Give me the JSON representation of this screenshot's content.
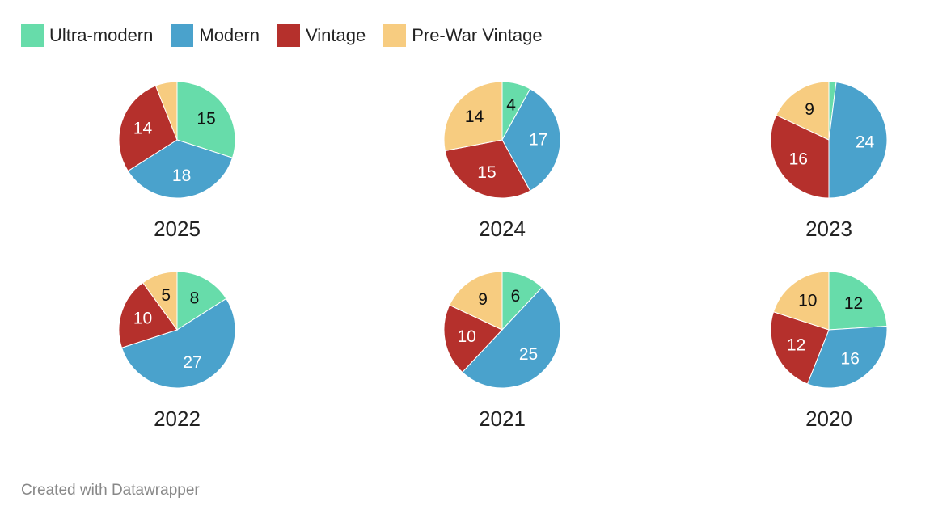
{
  "colors": {
    "Ultra-modern": "#67dcaa",
    "Modern": "#4aa2cc",
    "Vintage": "#b5302c",
    "Pre-War Vintage": "#f7cc80"
  },
  "chart_data": {
    "type": "pie",
    "legend": {
      "placement": "top-left"
    },
    "categories": [
      "Ultra-modern",
      "Modern",
      "Vintage",
      "Pre-War Vintage"
    ],
    "label_colors": {
      "Ultra-modern": "#111111",
      "Modern": "#ffffff",
      "Vintage": "#ffffff",
      "Pre-War Vintage": "#111111"
    },
    "pies": [
      {
        "year": "2025",
        "values": [
          15,
          18,
          14,
          3
        ],
        "labels": [
          "15",
          "18",
          "14",
          ""
        ]
      },
      {
        "year": "2024",
        "values": [
          4,
          17,
          15,
          14
        ],
        "labels": [
          "4",
          "17",
          "15",
          "14"
        ]
      },
      {
        "year": "2023",
        "values": [
          1,
          24,
          16,
          9
        ],
        "labels": [
          "",
          "24",
          "16",
          "9"
        ]
      },
      {
        "year": "2022",
        "values": [
          8,
          27,
          10,
          5
        ],
        "labels": [
          "8",
          "27",
          "10",
          "5"
        ]
      },
      {
        "year": "2021",
        "values": [
          6,
          25,
          10,
          9
        ],
        "labels": [
          "6",
          "25",
          "10",
          "9"
        ]
      },
      {
        "year": "2020",
        "values": [
          12,
          16,
          12,
          10
        ],
        "labels": [
          "12",
          "16",
          "12",
          "10"
        ]
      }
    ]
  },
  "footer": {
    "credit": "Created with Datawrapper"
  }
}
